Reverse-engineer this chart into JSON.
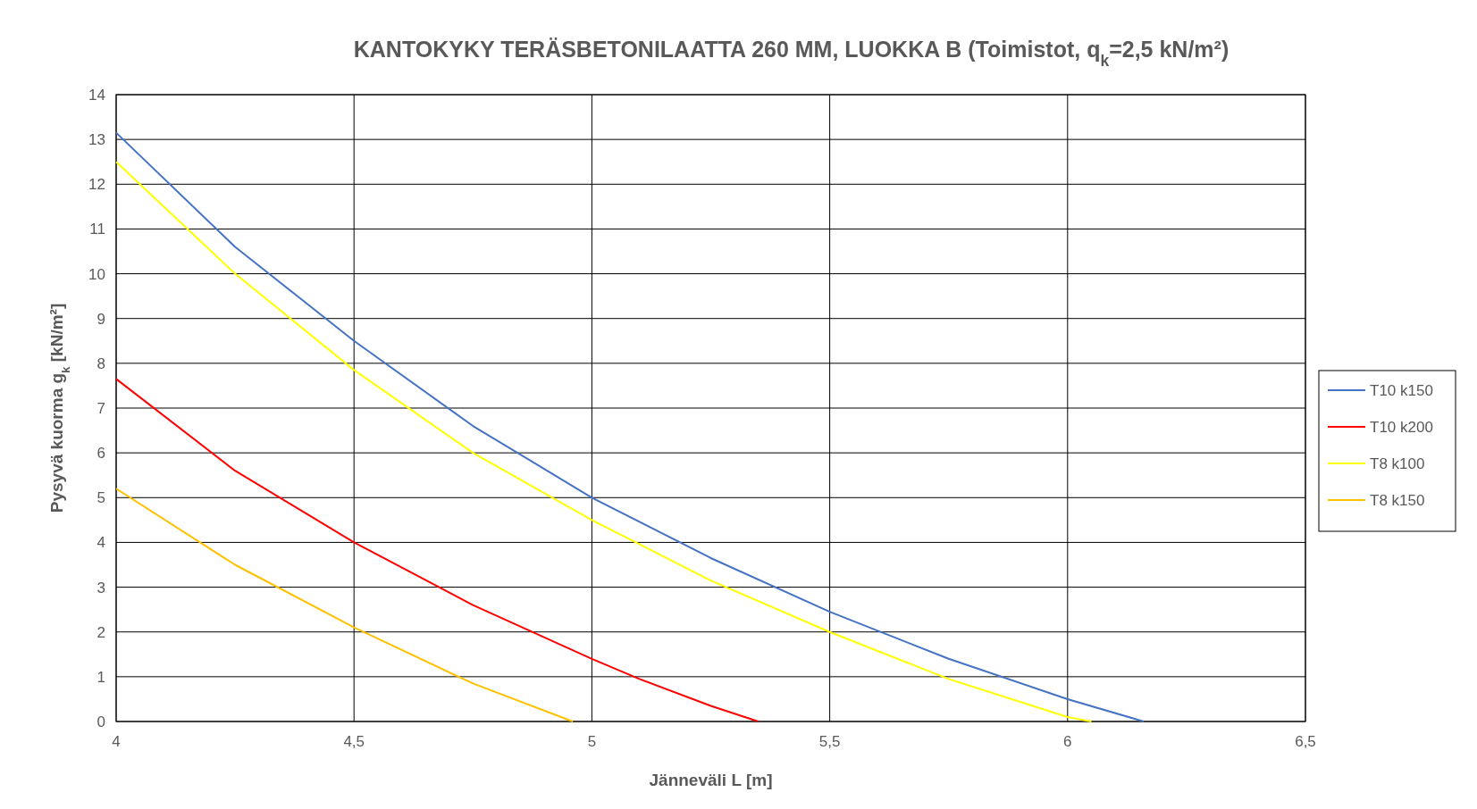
{
  "chart_data": {
    "type": "line",
    "title": "KANTOKYKY TERÄSBETONILAATTA 260 MM, LUOKKA B (Toimistot, q$_{k}$=2,5 kN/m²)",
    "xlabel": "Jänneväli L [m]",
    "ylabel": "Pysyvä kuorma g$_{k}$ [kN/m²]",
    "xlim": [
      4,
      6.5
    ],
    "xticks": [
      4,
      {
        "value": 4.5,
        "label": "4,5"
      },
      5,
      {
        "value": 5.5,
        "label": "5,5"
      },
      6,
      {
        "value": 6.5,
        "label": "6,5"
      }
    ],
    "ylim": [
      0,
      14
    ],
    "yticks": [
      0,
      1,
      2,
      3,
      4,
      5,
      6,
      7,
      8,
      9,
      10,
      11,
      12,
      13,
      14
    ],
    "grid": true,
    "legend": "right",
    "marker": "none",
    "line_style": "solid",
    "series": [
      {
        "name": "T10 k150",
        "color": "#4472c4",
        "x": [
          4,
          4.25,
          4.5,
          4.75,
          5,
          5.25,
          5.5,
          5.75,
          6,
          6.16
        ],
        "values": [
          13.15,
          10.6,
          8.5,
          6.6,
          5.0,
          3.65,
          2.45,
          1.4,
          0.5,
          0
        ]
      },
      {
        "name": "T10 k200",
        "color": "#ff0000",
        "x": [
          4,
          4.25,
          4.5,
          4.75,
          5,
          5.1,
          5.25,
          5.35
        ],
        "values": [
          7.65,
          5.6,
          4.0,
          2.6,
          1.4,
          0.95,
          0.35,
          0
        ]
      },
      {
        "name": "T8 k100",
        "color": "#ffff00",
        "x": [
          4,
          4.25,
          4.5,
          4.75,
          5,
          5.25,
          5.5,
          5.75,
          6,
          6.05
        ],
        "values": [
          12.5,
          10.0,
          7.85,
          6.0,
          4.5,
          3.15,
          2.0,
          0.95,
          0.1,
          0
        ]
      },
      {
        "name": "T8 k150",
        "color": "#ffc000",
        "x": [
          4,
          4.25,
          4.5,
          4.72,
          4.75,
          4.96
        ],
        "values": [
          5.2,
          3.5,
          2.1,
          1.0,
          0.85,
          0
        ]
      }
    ]
  }
}
